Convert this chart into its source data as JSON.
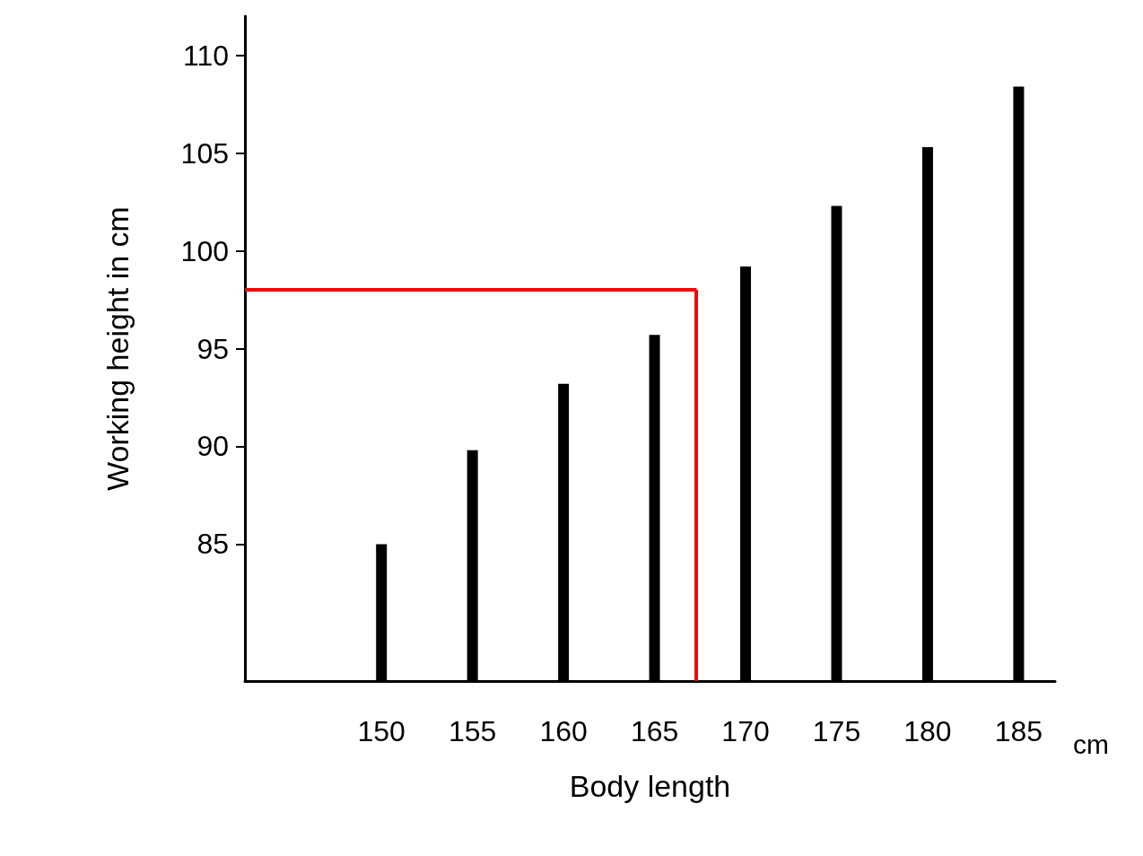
{
  "chart_data": {
    "type": "bar",
    "xlabel": "Body length",
    "ylabel": "Working height in cm",
    "x": [
      150,
      155,
      160,
      165,
      170,
      175,
      180,
      185
    ],
    "values": [
      85.0,
      89.8,
      93.2,
      95.7,
      99.2,
      102.3,
      105.3,
      108.4
    ],
    "color": "#000000",
    "xlim": [
      142.5,
      187
    ],
    "xticks": [
      150,
      155,
      160,
      165,
      170,
      175,
      180,
      185
    ],
    "ylim": [
      78,
      112
    ],
    "yticks": [
      85,
      90,
      95,
      100,
      105,
      110
    ],
    "grid": false,
    "ref_lines": [
      {
        "axis": "y",
        "value": 98,
        "color": "#ff0000"
      },
      {
        "axis": "x",
        "value": 167.3,
        "color": "#ff0000"
      }
    ],
    "annotations": [
      "cm"
    ]
  }
}
